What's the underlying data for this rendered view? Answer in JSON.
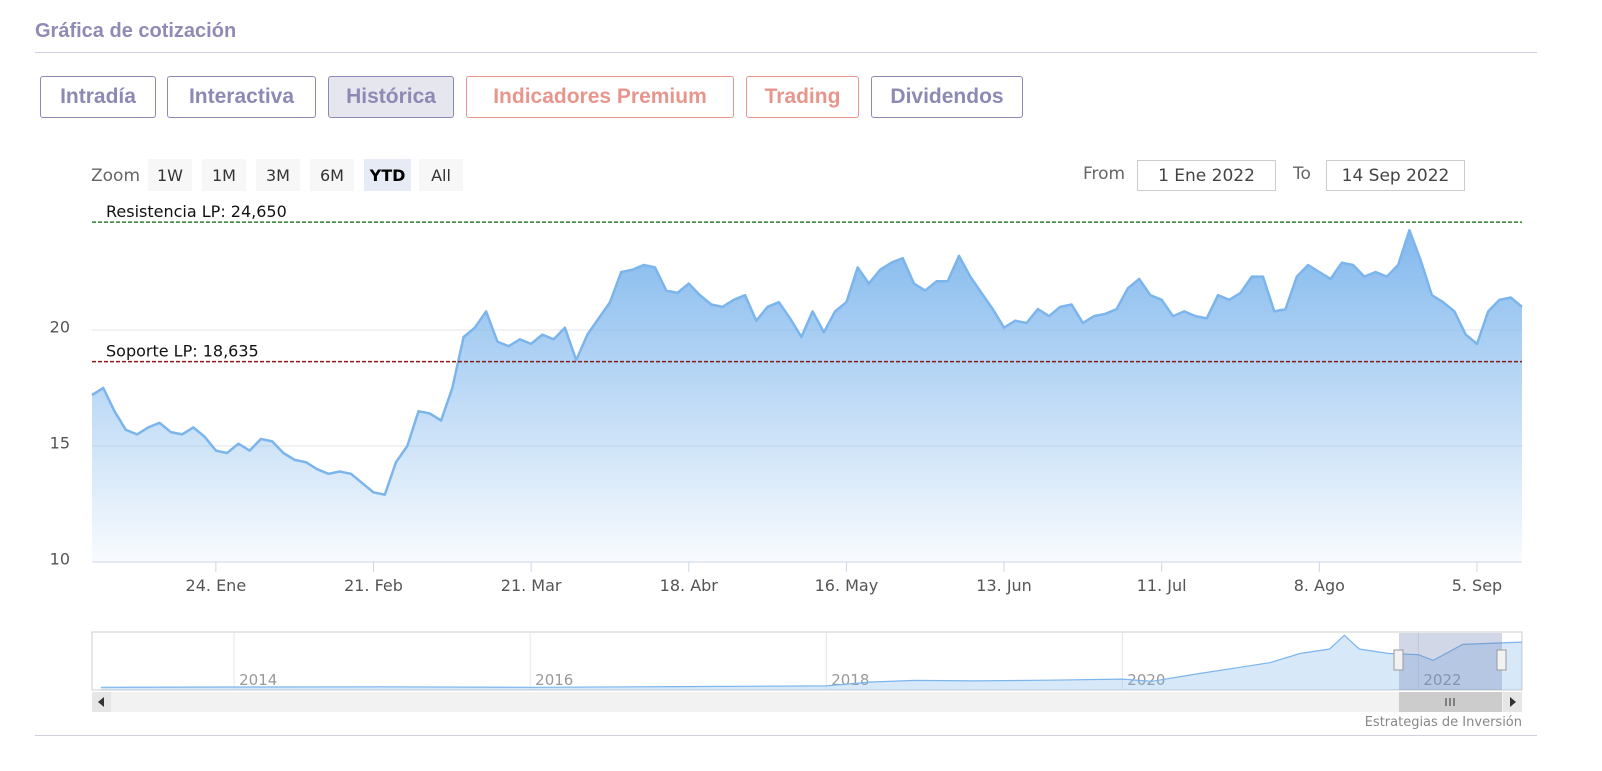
{
  "header": {
    "title": "Gráfica de cotización"
  },
  "tabs": [
    "Intradía",
    "Interactiva",
    "Histórica",
    "Indicadores Premium",
    "Trading",
    "Dividendos"
  ],
  "zoom": {
    "label": "Zoom",
    "buttons": [
      "1W",
      "1M",
      "3M",
      "6M",
      "YTD",
      "All"
    ]
  },
  "range": {
    "from_label": "From",
    "from": "1 Ene 2022",
    "to_label": "To",
    "to": "14 Sep 2022"
  },
  "credit": "Estrategias de Inversión",
  "chart_data": [
    {
      "type": "area",
      "color": "#7cb5ec",
      "categories": [
        null,
        null,
        null,
        null,
        null,
        null,
        null,
        null,
        null,
        null,
        null,
        "24. Ene",
        null,
        null,
        null,
        null,
        null,
        null,
        null,
        null,
        null,
        null,
        null,
        null,
        null,
        "21. Feb",
        null,
        null,
        null,
        null,
        null,
        null,
        null,
        null,
        null,
        null,
        null,
        null,
        null,
        "21. Mar",
        null,
        null,
        null,
        null,
        null,
        null,
        null,
        null,
        null,
        null,
        null,
        null,
        null,
        "18. Abr",
        null,
        null,
        null,
        null,
        null,
        null,
        null,
        null,
        null,
        null,
        null,
        null,
        null,
        "16. May",
        null,
        null,
        null,
        null,
        null,
        null,
        null,
        null,
        null,
        null,
        null,
        null,
        null,
        "13. Jun",
        null,
        null,
        null,
        null,
        null,
        null,
        null,
        null,
        null,
        null,
        null,
        null,
        null,
        "11. Jul",
        null,
        null,
        null,
        null,
        null,
        null,
        null,
        null,
        null,
        null,
        null,
        null,
        null,
        "8. Ago",
        null,
        null,
        null,
        null,
        null,
        null,
        null,
        null,
        null,
        null,
        null,
        null,
        null,
        "5. Sep",
        null,
        null,
        null,
        null
      ],
      "values": [
        17.2,
        17.5,
        16.5,
        15.7,
        15.5,
        15.8,
        16.0,
        15.6,
        15.5,
        15.8,
        15.4,
        14.8,
        14.7,
        15.1,
        14.8,
        15.3,
        15.2,
        14.7,
        14.4,
        14.3,
        14.0,
        13.8,
        13.9,
        13.8,
        13.4,
        13.0,
        12.9,
        14.3,
        15.0,
        16.5,
        16.4,
        16.1,
        17.5,
        19.7,
        20.1,
        20.8,
        19.5,
        19.3,
        19.6,
        19.4,
        19.8,
        19.6,
        20.1,
        18.7,
        19.8,
        20.5,
        21.2,
        22.5,
        22.6,
        22.8,
        22.7,
        21.7,
        21.6,
        22.0,
        21.5,
        21.1,
        21.0,
        21.3,
        21.5,
        20.4,
        21.0,
        21.2,
        20.5,
        19.7,
        20.8,
        19.9,
        20.8,
        21.2,
        22.7,
        22.0,
        22.6,
        22.9,
        23.1,
        22.0,
        21.7,
        22.1,
        22.1,
        23.2,
        22.3,
        21.6,
        20.9,
        20.1,
        20.4,
        20.3,
        20.9,
        20.6,
        21.0,
        21.1,
        20.3,
        20.6,
        20.7,
        20.9,
        21.8,
        22.2,
        21.5,
        21.3,
        20.6,
        20.8,
        20.6,
        20.5,
        21.5,
        21.3,
        21.6,
        22.3,
        22.3,
        20.8,
        20.9,
        22.3,
        22.8,
        22.5,
        22.2,
        22.9,
        22.8,
        22.3,
        22.5,
        22.3,
        22.8,
        24.3,
        23.0,
        21.5,
        21.2,
        20.8,
        19.8,
        19.4,
        20.8,
        21.3,
        21.4,
        21.0
      ],
      "ylim": [
        10,
        25
      ],
      "yticks": [
        10,
        15,
        20
      ],
      "grid": true,
      "plot_lines": [
        {
          "label": "Resistencia LP: 24,650",
          "value": 24.65,
          "color": "#2e7d32"
        },
        {
          "label": "Soporte LP: 18,635",
          "value": 18.635,
          "color": "#8b1a1a"
        }
      ]
    },
    {
      "type": "navigator",
      "color": "#7cb5ec",
      "x": [
        2013.1,
        2014,
        2015,
        2016,
        2017,
        2018,
        2018.3,
        2018.6,
        2019,
        2019.5,
        2020,
        2020.2,
        2020.5,
        2020.8,
        2021,
        2021.2,
        2021.4,
        2021.5,
        2021.6,
        2021.8,
        2022,
        2022.1,
        2022.3,
        2022.7
      ],
      "values": [
        1.2,
        1.3,
        1.4,
        1.2,
        1.5,
        1.8,
        3.5,
        4.2,
        4.0,
        4.3,
        4.8,
        3.8,
        7,
        10,
        12,
        16,
        18,
        24,
        18,
        16,
        15.5,
        13,
        20,
        21
      ],
      "xlim": [
        2013.04,
        2022.7
      ],
      "xticks": [
        2014,
        2016,
        2018,
        2020,
        2022
      ],
      "ylim": [
        0,
        25
      ]
    }
  ]
}
